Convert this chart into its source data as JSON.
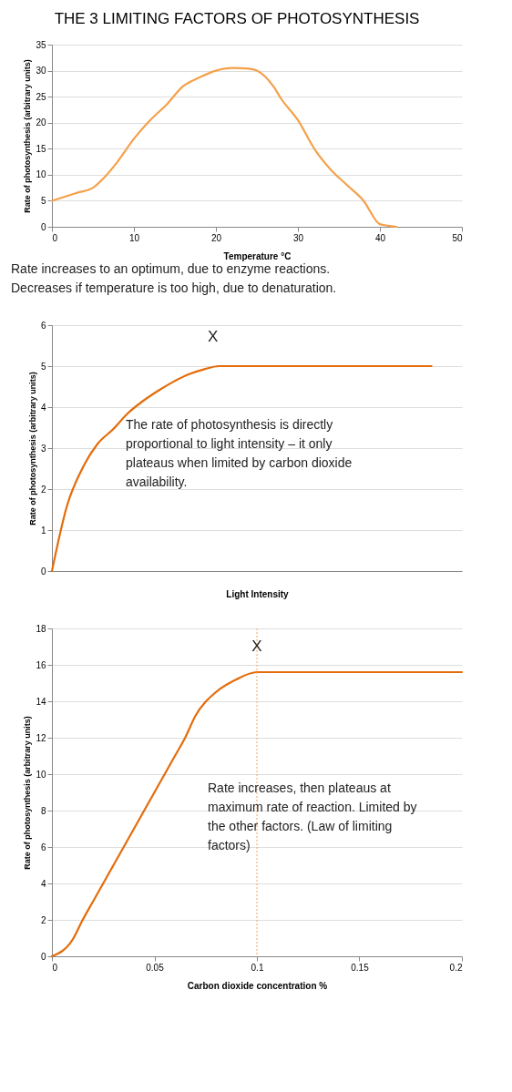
{
  "chart_data": [
    {
      "type": "line",
      "title": "THE 3 LIMITING FACTORS OF PHOTOSYNTHESIS",
      "xlabel": "Temperature °C",
      "ylabel": "Rate of photosynthesis (arbitrary units)",
      "x": [
        0,
        3,
        5,
        6.4,
        8,
        10,
        12,
        14,
        16,
        18,
        20,
        22,
        24,
        25,
        27,
        28,
        30,
        32,
        34,
        36,
        38,
        40,
        41,
        42
      ],
      "series": [
        {
          "color": "#f5a04a",
          "values": [
            5,
            6.5,
            7.5,
            9.5,
            12.5,
            16.9,
            20.5,
            23.5,
            27,
            28.7,
            30,
            30.5,
            30.4,
            30,
            27,
            24.5,
            20.5,
            15,
            11,
            8,
            5,
            0.5,
            0.2,
            0
          ]
        }
      ],
      "xlim": [
        0,
        50
      ],
      "xticks": [
        0,
        10,
        20,
        30,
        40,
        50
      ],
      "ylim": [
        0,
        35
      ],
      "yticks": [
        0,
        5,
        10,
        15,
        20,
        25,
        30,
        35
      ],
      "grid": "y",
      "legend": false,
      "annotations": [
        "Rate increases to an optimum, due to enzyme reactions. Decreases if temperature  is too high, due to denaturation."
      ]
    },
    {
      "type": "line",
      "xlabel": "Light Intensity",
      "ylabel": "Rate of photosynthesis (arbitrary units)",
      "categories": [
        null,
        null,
        null,
        null,
        null,
        null,
        null,
        null,
        null,
        null,
        null,
        null,
        null,
        null,
        null,
        null,
        null,
        null,
        null,
        null,
        null,
        null,
        null,
        null,
        null,
        null,
        null,
        null
      ],
      "series": [
        {
          "color": "#e46c0a",
          "values": [
            0,
            1.6,
            2.5,
            3.1,
            3.45,
            3.85,
            4.15,
            4.4,
            4.62,
            4.8,
            4.92,
            5,
            5,
            5,
            5,
            5,
            5,
            5,
            5,
            5,
            5,
            5,
            5,
            5,
            5,
            5,
            null,
            null
          ]
        }
      ],
      "ylim": [
        0,
        6
      ],
      "yticks": [
        0,
        1,
        2,
        3,
        4,
        5,
        6
      ],
      "tick_labels": "y",
      "grid": "y",
      "legend": false,
      "annotations": [
        "X",
        "The rate of photosynthesis is directly proportional to light intensity – it only plateaus when limited by carbon dioxide availability."
      ]
    },
    {
      "type": "line",
      "xlabel": "Carbon dioxide concentration %",
      "ylabel": "Rate of photosynthesis (arbitrary units)",
      "x": [
        0,
        0.01,
        0.015,
        0.02,
        0.03,
        0.04,
        0.05,
        0.06,
        0.065,
        0.07,
        0.08,
        0.09,
        0.1,
        0.2
      ],
      "series": [
        {
          "color": "#e46c0a",
          "values": [
            0,
            0.9,
            2,
            3,
            5,
            7,
            9,
            11,
            12,
            13.2,
            14.5,
            15.2,
            15.6,
            15.6
          ]
        }
      ],
      "xlim": [
        0,
        0.2
      ],
      "xticks": [
        0,
        0.05,
        0.1,
        0.15,
        0.2
      ],
      "ylim": [
        0,
        18
      ],
      "yticks": [
        0,
        2,
        4,
        6,
        8,
        10,
        12,
        14,
        16,
        18
      ],
      "grid": "y",
      "legend": false,
      "ref_lines": [
        {
          "axis": "x",
          "value": 0.1,
          "color": "#f4a460",
          "line_style": "dotted"
        }
      ],
      "annotations": [
        {
          "text": "X",
          "x": 0.1,
          "y": 17
        },
        "Rate increases, then plateaus at maximum rate of reaction. Limited by the other factors. (Law of limiting factors)"
      ]
    }
  ]
}
